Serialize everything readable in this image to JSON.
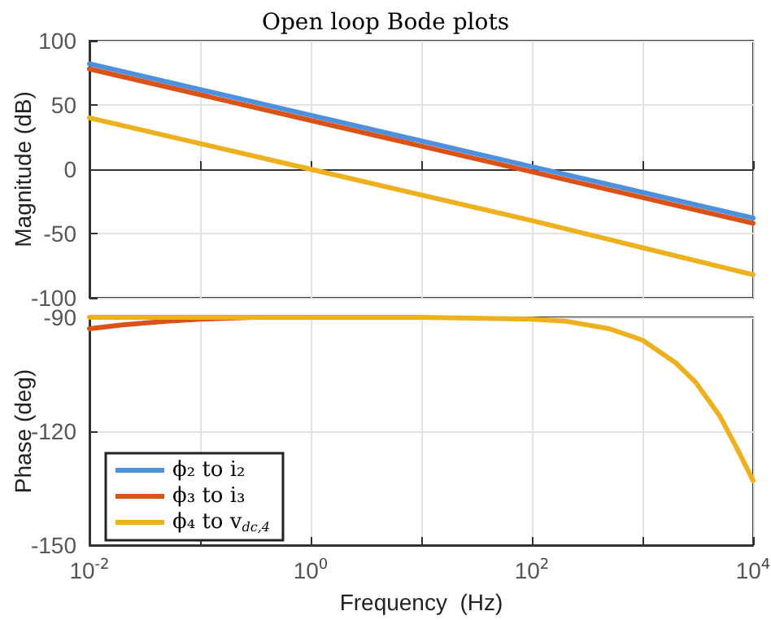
{
  "chart_data": [
    {
      "type": "line",
      "title": "Open loop Bode plots",
      "ylabel": "Magnitude (dB)",
      "x": [
        0.01,
        1,
        100,
        10000
      ],
      "series": [
        {
          "color": "#4d90e0",
          "values": [
            82,
            42,
            2,
            -38
          ]
        },
        {
          "color": "#d95319",
          "values": [
            78,
            38,
            -2,
            -42
          ]
        },
        {
          "color": "#edb120",
          "values": [
            40,
            0,
            -40,
            -82
          ]
        }
      ],
      "log": "x",
      "xlim": [
        0.01,
        10000
      ],
      "xticks": [
        0.01,
        0.1,
        1,
        10,
        100,
        1000,
        10000
      ],
      "ylim": [
        -100,
        100
      ],
      "yticks": [
        -100,
        -50,
        0,
        50,
        100
      ],
      "grid": true,
      "tick_labels": "y",
      "legend": false
    },
    {
      "type": "line",
      "ylabel": "Phase (deg)",
      "xlabel": "Frequency  (Hz)",
      "x": [
        0.01,
        0.02,
        0.05,
        0.1,
        0.3,
        1,
        10,
        100,
        200,
        500,
        1000,
        2000,
        3000,
        5000,
        7000,
        10000
      ],
      "series": [
        {
          "name": "ϕ₂ to i₂",
          "color": "#4d90e0",
          "values": [
            null,
            null,
            null,
            null,
            null,
            null,
            null,
            null,
            null,
            null,
            null,
            null,
            null,
            null,
            null,
            null
          ]
        },
        {
          "name": "ϕ₃ to i₃",
          "color": "#d95319",
          "values": [
            -93,
            -92,
            -91,
            -90.5,
            -90,
            null,
            null,
            null,
            null,
            null,
            null,
            null,
            null,
            null,
            null,
            null
          ]
        },
        {
          "name": "ϕ₄ to v$_{dc,4}$",
          "color": "#edb120",
          "values": [
            -90,
            -90,
            -90,
            -90,
            -90,
            -90,
            -90,
            -90.5,
            -91,
            -93,
            -96,
            -102,
            -107,
            -116,
            -124,
            -133
          ]
        }
      ],
      "log": "x",
      "xlim": [
        0.01,
        10000
      ],
      "xticks": [
        {
          "value": 0.01,
          "label": "10$^{-2}$"
        },
        {
          "value": 0.1,
          "label": null
        },
        {
          "value": 1,
          "label": "10$^{0}$"
        },
        {
          "value": 10,
          "label": null
        },
        {
          "value": 100,
          "label": "10$^{2}$"
        },
        {
          "value": 1000,
          "label": null
        },
        {
          "value": 10000,
          "label": "10$^{4}$"
        }
      ],
      "ylim": [
        -150,
        -90
      ],
      "yticks": [
        -150,
        -120,
        -90
      ],
      "grid": true,
      "legend": "bottom left"
    }
  ]
}
